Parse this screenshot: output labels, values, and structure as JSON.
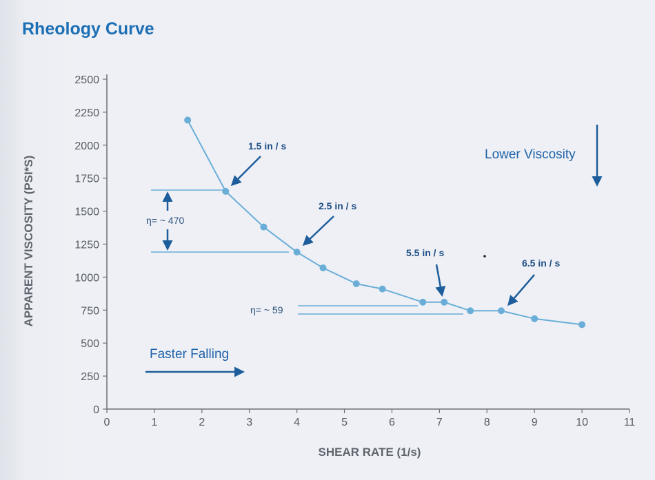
{
  "title": "Rheology Curve",
  "chart_data": {
    "type": "line",
    "xlabel": "SHEAR RATE (1/s)",
    "ylabel": "APPARENT VISCOSITY (PSI*S)",
    "xlim": [
      0,
      11
    ],
    "ylim": [
      0,
      2500
    ],
    "x_ticks": [
      0,
      1,
      2,
      3,
      4,
      5,
      6,
      7,
      8,
      9,
      10,
      11
    ],
    "y_ticks": [
      0,
      250,
      500,
      750,
      1000,
      1250,
      1500,
      1750,
      2000,
      2250,
      2500
    ],
    "grid": false,
    "line_color": "#6aaed8",
    "series": [
      {
        "name": "Viscosity",
        "x": [
          1.7,
          2.5,
          3.3,
          4.0,
          4.55,
          5.25,
          5.8,
          6.65,
          7.1,
          7.65,
          8.3,
          9.0,
          10.0
        ],
        "y": [
          2190,
          1650,
          1380,
          1190,
          1070,
          950,
          910,
          810,
          810,
          745,
          745,
          685,
          640
        ]
      }
    ],
    "annotations": {
      "speed_labels": [
        "1.5 in / s",
        "2.5 in / s",
        "5.5 in / s",
        "6.5 in / s"
      ],
      "eta_large": "η= ~ 470",
      "eta_small": "η= ~ 59",
      "lower_viscosity": "Lower Viscosity",
      "faster_falling": "Faster Falling"
    }
  }
}
